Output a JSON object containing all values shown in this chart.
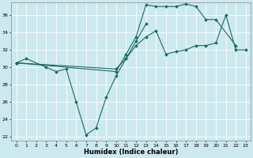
{
  "xlabel": "Humidex (Indice chaleur)",
  "bg_color": "#cce9f0",
  "line_color": "#1a6b5e",
  "grid_color": "#ffffff",
  "xlim": [
    -0.5,
    23.5
  ],
  "ylim": [
    21.5,
    37.5
  ],
  "xticks": [
    0,
    1,
    2,
    3,
    4,
    5,
    6,
    7,
    8,
    9,
    10,
    11,
    12,
    13,
    14,
    15,
    16,
    17,
    18,
    19,
    20,
    21,
    22,
    23
  ],
  "yticks": [
    22,
    24,
    26,
    28,
    30,
    32,
    34,
    36
  ],
  "line1_x": [
    0,
    1,
    3,
    4,
    5,
    6,
    7,
    8,
    9,
    10,
    11,
    12,
    13
  ],
  "line1_y": [
    30.5,
    31.0,
    30.0,
    29.5,
    29.8,
    26.0,
    22.2,
    23.0,
    26.5,
    29.0,
    31.0,
    33.0,
    35.0
  ],
  "line2_x": [
    0,
    10,
    11,
    12,
    13,
    14,
    15,
    16,
    17,
    18,
    19,
    20,
    22
  ],
  "line2_y": [
    30.5,
    29.5,
    31.5,
    33.5,
    37.2,
    37.0,
    37.0,
    37.0,
    37.3,
    37.0,
    35.5,
    35.5,
    32.5
  ],
  "line3_x": [
    0,
    10,
    11,
    12,
    13,
    14,
    15,
    16,
    17,
    18,
    19,
    20,
    21,
    22,
    23
  ],
  "line3_y": [
    30.5,
    29.8,
    31.0,
    32.5,
    33.5,
    34.2,
    31.5,
    31.8,
    32.0,
    32.5,
    32.5,
    32.8,
    36.0,
    32.0,
    32.0
  ]
}
